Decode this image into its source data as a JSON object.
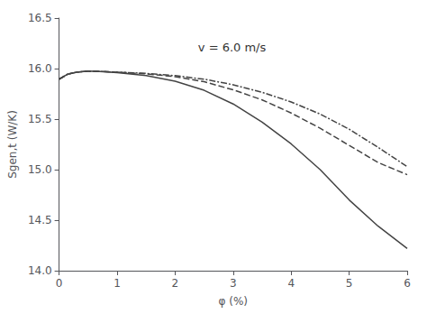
{
  "chart_data": {
    "type": "line",
    "xlabel": "φ (%)",
    "ylabel": "Sgen,t (W/K)",
    "annotation": "v = 6.0 m/s",
    "xlim": [
      0,
      6
    ],
    "ylim": [
      14.0,
      16.5
    ],
    "xticks": [
      0,
      1,
      2,
      3,
      4,
      5,
      6
    ],
    "yticks": [
      {
        "value": 14.0,
        "label": "14.0"
      },
      14.5,
      {
        "value": 15.0,
        "label": "15.0"
      },
      15.5,
      {
        "value": 16.0,
        "label": "16.0"
      },
      16.5
    ],
    "grid": false,
    "x": [
      0.0,
      0.15,
      0.3,
      0.5,
      0.7,
      1.0,
      1.5,
      2.0,
      2.5,
      3.0,
      3.5,
      4.0,
      4.5,
      5.0,
      5.5,
      6.0
    ],
    "series": [
      {
        "color": "#444444",
        "line_style": "solid",
        "values": [
          15.895,
          15.945,
          15.965,
          15.975,
          15.972,
          15.96,
          15.93,
          15.875,
          15.785,
          15.65,
          15.47,
          15.255,
          15.0,
          14.7,
          14.44,
          14.22
        ]
      },
      {
        "color": "#444444",
        "line_style": "dashed",
        "values": [
          15.895,
          15.945,
          15.965,
          15.975,
          15.972,
          15.965,
          15.948,
          15.92,
          15.87,
          15.79,
          15.69,
          15.56,
          15.41,
          15.24,
          15.07,
          14.95
        ]
      },
      {
        "color": "#444444",
        "line_style": "dashdot",
        "values": [
          15.895,
          15.945,
          15.965,
          15.975,
          15.972,
          15.965,
          15.952,
          15.93,
          15.895,
          15.84,
          15.765,
          15.67,
          15.55,
          15.4,
          15.22,
          15.03
        ]
      }
    ]
  }
}
